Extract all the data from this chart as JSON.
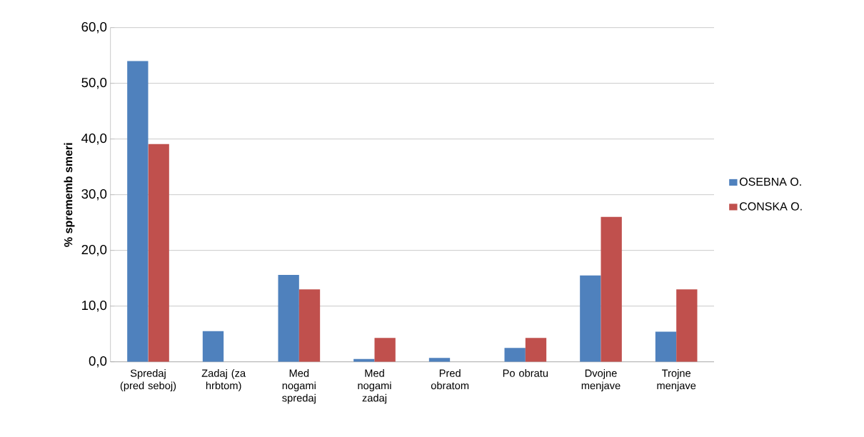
{
  "chart_data": {
    "type": "bar",
    "ylabel": "% sprememb smeri",
    "categories": [
      "Spredaj (pred seboj)",
      "Zadaj (za hrbtom)",
      "Med nogami spredaj",
      "Med nogami zadaj",
      "Pred obratom",
      "Po obratu",
      "Dvojne menjave",
      "Trojne menjave"
    ],
    "series": [
      {
        "name": "OSEBNA O.",
        "color": "#4f81bd",
        "values": [
          54.0,
          5.5,
          15.6,
          0.5,
          0.7,
          2.5,
          15.5,
          5.4
        ]
      },
      {
        "name": "CONSKA O.",
        "color": "#c0504d",
        "values": [
          39.1,
          0,
          13.0,
          4.3,
          0,
          4.3,
          26.0,
          13.0
        ]
      }
    ],
    "ylim": [
      0,
      60
    ],
    "yticks": [
      {
        "value": 0,
        "label": "0,0"
      },
      {
        "value": 10,
        "label": "10,0"
      },
      {
        "value": 20,
        "label": "20,0"
      },
      {
        "value": 30,
        "label": "30,0"
      },
      {
        "value": 40,
        "label": "40,0"
      },
      {
        "value": 50,
        "label": "50,0"
      },
      {
        "value": 60,
        "label": "60,0"
      }
    ],
    "grid": "y",
    "legend": "right"
  }
}
